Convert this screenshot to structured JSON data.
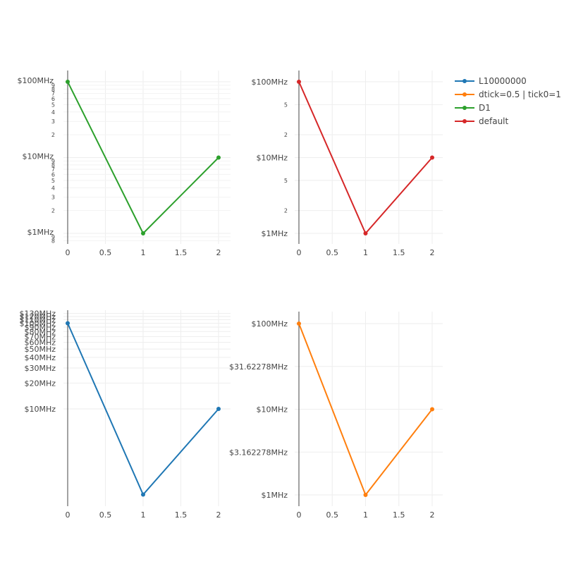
{
  "chart_data": [
    {
      "type": "line",
      "yscale": "log",
      "x": [
        0,
        1,
        2
      ],
      "x_ticks": [
        "0",
        "0.5",
        "1",
        "1.5",
        "2"
      ],
      "series": [
        {
          "name": "D1",
          "x": [
            0,
            1,
            2
          ],
          "y": [
            100000000,
            1000000,
            10000000
          ],
          "color": "#2ca02c"
        }
      ],
      "ylim": [
        800000,
        130000000
      ],
      "y_major_labels": [
        "$1MHz",
        "$10MHz",
        "$100MHz"
      ],
      "y_minor_labels": [
        "2",
        "3",
        "4",
        "5",
        "6",
        "7",
        "8",
        "9"
      ],
      "grid": true
    },
    {
      "type": "line",
      "yscale": "log",
      "x": [
        0,
        1,
        2
      ],
      "x_ticks": [
        "0",
        "0.5",
        "1",
        "1.5",
        "2"
      ],
      "series": [
        {
          "name": "default",
          "x": [
            0,
            1,
            2
          ],
          "y": [
            100000000,
            1000000,
            10000000
          ],
          "color": "#d62728"
        }
      ],
      "ylim": [
        1000000,
        100000000
      ],
      "y_major_labels": [
        "$1MHz",
        "$10MHz",
        "$100MHz"
      ],
      "y_minor_labels": [
        "2",
        "5"
      ],
      "grid": true
    },
    {
      "type": "line",
      "yscale": "log",
      "x": [
        0,
        1,
        2
      ],
      "x_ticks": [
        "0",
        "0.5",
        "1",
        "1.5",
        "2"
      ],
      "series": [
        {
          "name": "L10000000",
          "x": [
            0,
            1,
            2
          ],
          "y": [
            100000000,
            1000000,
            10000000
          ],
          "color": "#1f77b4"
        }
      ],
      "ylim": [
        1000000,
        130000000
      ],
      "y_tick_labels": [
        "$10MHz",
        "$20MHz",
        "$30MHz",
        "$40MHz",
        "$50MHz",
        "$60MHz",
        "$70MHz",
        "$80MHz",
        "$90MHz",
        "$100MHz",
        "$110MHz",
        "$120MHz",
        "$130MHz"
      ],
      "grid": true
    },
    {
      "type": "line",
      "yscale": "log",
      "x": [
        0,
        1,
        2
      ],
      "x_ticks": [
        "0",
        "0.5",
        "1",
        "1.5",
        "2"
      ],
      "series": [
        {
          "name": "dtick=0.5 | tick0=1",
          "x": [
            0,
            1,
            2
          ],
          "y": [
            100000000,
            1000000,
            10000000
          ],
          "color": "#ff7f0e"
        }
      ],
      "ylim": [
        1000000,
        100000000
      ],
      "y_tick_labels": [
        "$1MHz",
        "$3.162278MHz",
        "$10MHz",
        "$31.62278MHz",
        "$100MHz"
      ],
      "grid": true
    }
  ],
  "legend": {
    "placement": "top-right",
    "items": [
      {
        "name": "L10000000",
        "color": "#1f77b4"
      },
      {
        "name": "dtick=0.5 | tick0=1",
        "color": "#ff7f0e"
      },
      {
        "name": "D1",
        "color": "#2ca02c"
      },
      {
        "name": "default",
        "color": "#d62728"
      }
    ]
  }
}
